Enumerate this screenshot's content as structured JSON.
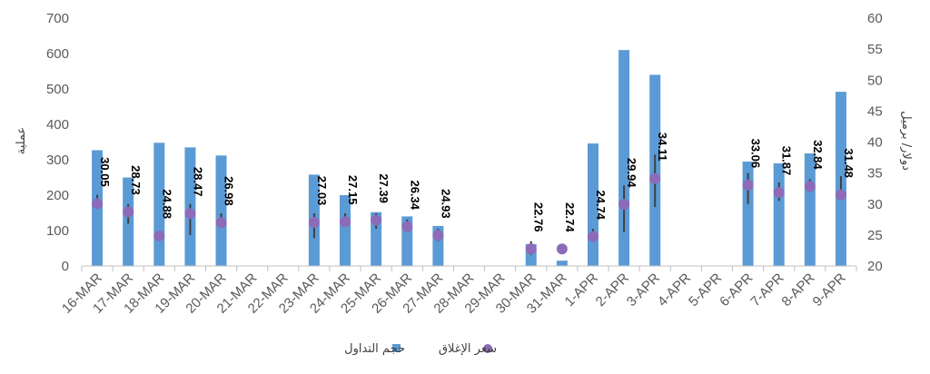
{
  "chart_data": {
    "type": "bar",
    "categories": [
      "16-MAR",
      "17-MAR",
      "18-MAR",
      "19-MAR",
      "20-MAR",
      "21-MAR",
      "22-MAR",
      "23-MAR",
      "24-MAR",
      "25-MAR",
      "26-MAR",
      "27-MAR",
      "28-MAR",
      "29-MAR",
      "30-MAR",
      "31-MAR",
      "1-APR",
      "2-APR",
      "3-APR",
      "4-APR",
      "5-APR",
      "6-APR",
      "7-APR",
      "8-APR",
      "9-APR"
    ],
    "series": [
      {
        "name": "حجم التداول",
        "type": "bar",
        "axis": "left",
        "color": "#5B9BD5",
        "values": [
          327,
          250,
          348,
          335,
          312,
          null,
          null,
          258,
          200,
          152,
          140,
          113,
          null,
          null,
          62,
          15,
          346,
          610,
          540,
          null,
          null,
          295,
          290,
          318,
          492
        ]
      },
      {
        "name": "سعر الإغلاق",
        "type": "scatter",
        "axis": "right",
        "color": "#8E6BB8",
        "values": [
          30.05,
          28.73,
          24.88,
          28.47,
          26.98,
          null,
          null,
          27.03,
          27.15,
          27.39,
          26.34,
          24.93,
          null,
          null,
          22.76,
          22.74,
          24.74,
          29.94,
          34.11,
          null,
          null,
          33.06,
          31.87,
          32.84,
          31.48
        ],
        "labels": [
          "30.05",
          "28.73",
          "24.88",
          "28.47",
          "26.98",
          "",
          "",
          "27.03",
          "27.15",
          "27.39",
          "26.34",
          "24.93",
          "",
          "",
          "22.76",
          "22.74",
          "24.74",
          "29.94",
          "34.11",
          "",
          "",
          "33.06",
          "31.87",
          "32.84",
          "31.48"
        ],
        "range_low": [
          null,
          26.8,
          null,
          25.0,
          null,
          null,
          null,
          24.5,
          null,
          26.0,
          25.5,
          24.0,
          null,
          null,
          21.8,
          null,
          null,
          25.5,
          29.5,
          null,
          null,
          30.0,
          30.5,
          32.0,
          null
        ],
        "range_high": [
          31.5,
          30.0,
          null,
          30.0,
          28.5,
          null,
          null,
          28.5,
          28.5,
          28.5,
          27.5,
          26.0,
          null,
          null,
          24.0,
          null,
          26.0,
          33.0,
          38.0,
          null,
          null,
          35.0,
          33.5,
          34.0,
          34.5
        ]
      }
    ],
    "y_left": {
      "title": "عملية",
      "ylim": [
        0,
        700
      ],
      "ticks": [
        0,
        100,
        200,
        300,
        400,
        500,
        600,
        700
      ]
    },
    "y_right": {
      "title": "دولار/ برميل",
      "ylim": [
        20,
        60
      ],
      "ticks": [
        20,
        25,
        30,
        35,
        40,
        45,
        50,
        55,
        60
      ]
    },
    "grid": false,
    "legend": "bottom-center"
  }
}
